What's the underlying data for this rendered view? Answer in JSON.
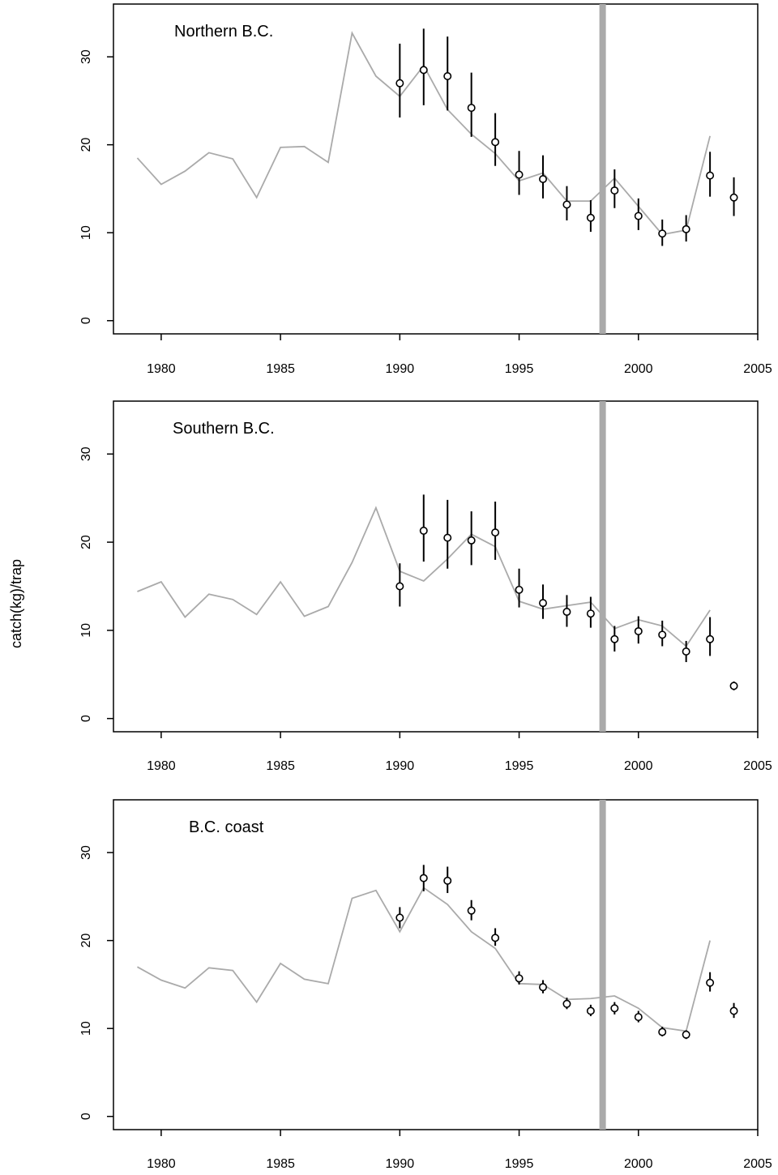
{
  "ylabel": "catch(kg)/trap",
  "colors": {
    "model_line": "#aaaaaa",
    "observed": "#000000",
    "divider": "#aaaaaa"
  },
  "chart_data": [
    {
      "type": "line",
      "title": "Northern B.C.",
      "xlim": [
        1978,
        2005
      ],
      "ylim": [
        -1.5,
        36
      ],
      "xticks": [
        1980,
        1985,
        1990,
        1995,
        2000,
        2005
      ],
      "yticks": [
        0,
        10,
        20,
        30
      ],
      "divider_x": 1998.5,
      "model": {
        "x": [
          1979,
          1980,
          1981,
          1982,
          1983,
          1984,
          1985,
          1986,
          1987,
          1988,
          1989,
          1990,
          1991,
          1992,
          1993,
          1994,
          1995,
          1996,
          1997,
          1998,
          1999,
          2000,
          2001,
          2002,
          2003
        ],
        "y": [
          18.5,
          15.5,
          17.0,
          19.1,
          18.4,
          14.0,
          19.7,
          19.8,
          18.0,
          32.7,
          27.8,
          25.5,
          29.0,
          24.0,
          21.2,
          19.0,
          15.9,
          16.8,
          13.6,
          13.6,
          16.2,
          13.0,
          9.8,
          10.3,
          21.0
        ]
      },
      "observed": {
        "x": [
          1990,
          1991,
          1992,
          1993,
          1994,
          1995,
          1996,
          1997,
          1998,
          1999,
          2000,
          2001,
          2002,
          2003,
          2004
        ],
        "y": [
          27.0,
          28.5,
          27.8,
          24.2,
          20.3,
          16.6,
          16.1,
          13.2,
          11.7,
          14.8,
          11.9,
          9.9,
          10.4,
          16.5,
          14.0
        ],
        "lower": [
          23.1,
          24.5,
          23.9,
          20.9,
          17.6,
          14.3,
          13.9,
          11.4,
          10.1,
          12.8,
          10.3,
          8.5,
          9.0,
          14.1,
          11.9
        ],
        "upper": [
          31.5,
          33.2,
          32.3,
          28.2,
          23.6,
          19.3,
          18.8,
          15.3,
          13.7,
          17.2,
          13.9,
          11.5,
          12.0,
          19.2,
          16.3
        ]
      }
    },
    {
      "type": "line",
      "title": "Southern B.C.",
      "xlim": [
        1978,
        2005
      ],
      "ylim": [
        -1.5,
        36
      ],
      "xticks": [
        1980,
        1985,
        1990,
        1995,
        2000,
        2005
      ],
      "yticks": [
        0,
        10,
        20,
        30
      ],
      "divider_x": 1998.5,
      "model": {
        "x": [
          1979,
          1980,
          1981,
          1982,
          1983,
          1984,
          1985,
          1986,
          1987,
          1988,
          1989,
          1990,
          1991,
          1992,
          1993,
          1994,
          1995,
          1996,
          1997,
          1998,
          1999,
          2000,
          2001,
          2002,
          2003
        ],
        "y": [
          14.4,
          15.5,
          11.5,
          14.1,
          13.5,
          11.8,
          15.5,
          11.6,
          12.7,
          17.7,
          23.9,
          16.7,
          15.6,
          18.1,
          20.9,
          19.5,
          13.3,
          12.4,
          12.8,
          13.2,
          10.2,
          11.2,
          10.5,
          8.2,
          12.3
        ]
      },
      "observed": {
        "x": [
          1990,
          1991,
          1992,
          1993,
          1994,
          1995,
          1996,
          1997,
          1998,
          1999,
          2000,
          2001,
          2002,
          2003,
          2004
        ],
        "y": [
          15.0,
          21.3,
          20.5,
          20.2,
          21.1,
          14.6,
          13.1,
          12.1,
          11.9,
          9.0,
          9.9,
          9.5,
          7.6,
          9.0,
          3.7
        ],
        "lower": [
          12.7,
          17.8,
          17.0,
          17.4,
          18.0,
          12.6,
          11.3,
          10.4,
          10.3,
          7.6,
          8.5,
          8.2,
          6.4,
          7.1,
          3.2
        ],
        "upper": [
          17.6,
          25.4,
          24.8,
          23.5,
          24.6,
          17.0,
          15.2,
          14.0,
          13.8,
          10.5,
          11.6,
          11.1,
          8.8,
          11.5,
          4.2
        ]
      }
    },
    {
      "type": "line",
      "title": "B.C. coast",
      "xlim": [
        1978,
        2005
      ],
      "ylim": [
        -1.5,
        36
      ],
      "xticks": [
        1980,
        1985,
        1990,
        1995,
        2000,
        2005
      ],
      "yticks": [
        0,
        10,
        20,
        30
      ],
      "divider_x": 1998.5,
      "model": {
        "x": [
          1979,
          1980,
          1981,
          1982,
          1983,
          1984,
          1985,
          1986,
          1987,
          1988,
          1989,
          1990,
          1991,
          1992,
          1993,
          1994,
          1995,
          1996,
          1997,
          1998,
          1999,
          2000,
          2001,
          2002,
          2003
        ],
        "y": [
          17.0,
          15.5,
          14.6,
          16.9,
          16.6,
          13.0,
          17.4,
          15.6,
          15.1,
          24.8,
          25.7,
          21.0,
          26.0,
          24.1,
          21.0,
          19.1,
          15.1,
          15.0,
          13.3,
          13.4,
          13.7,
          12.3,
          10.1,
          9.7,
          20.0
        ]
      },
      "observed": {
        "x": [
          1990,
          1991,
          1992,
          1993,
          1994,
          1995,
          1996,
          1997,
          1998,
          1999,
          2000,
          2001,
          2002,
          2003,
          2004
        ],
        "y": [
          22.6,
          27.1,
          26.8,
          23.4,
          20.3,
          15.7,
          14.7,
          12.8,
          12.0,
          12.3,
          11.3,
          9.6,
          9.3,
          15.2,
          12.0
        ],
        "lower": [
          21.4,
          25.6,
          25.4,
          22.3,
          19.4,
          15.0,
          14.0,
          12.2,
          11.4,
          11.6,
          10.7,
          9.1,
          8.8,
          14.2,
          11.2
        ],
        "upper": [
          23.8,
          28.6,
          28.4,
          24.6,
          21.4,
          16.5,
          15.5,
          13.5,
          12.7,
          13.0,
          12.0,
          10.2,
          9.8,
          16.4,
          12.9
        ]
      }
    }
  ]
}
